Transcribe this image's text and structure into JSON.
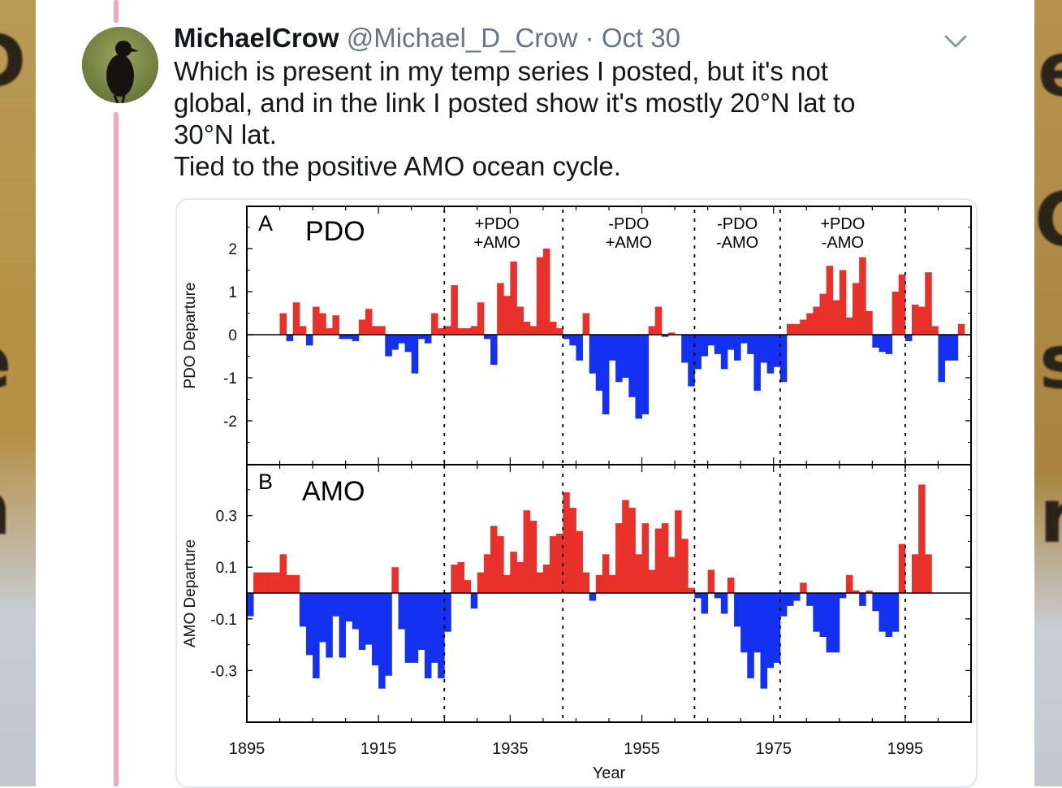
{
  "tweet": {
    "author_name": "MichaelCrow",
    "author_handle": "@Michael_D_Crow",
    "separator": "·",
    "date": "Oct 30",
    "lines": [
      "Which is present in my temp series I posted, but it's not",
      "global, and in the link I posted show it's mostly 20°N lat to",
      "30°N lat.",
      "Tied to the positive AMO ocean cycle."
    ],
    "icons": {
      "menu": "chevron-down-icon",
      "avatar": "crow-avatar"
    }
  },
  "chart_data": [
    {
      "type": "bar",
      "panel_letter": "A",
      "title": "PDO",
      "ylabel": "PDO Departure",
      "xlabel": "Year",
      "xlim": [
        1895,
        2005
      ],
      "ylim": [
        -3,
        3
      ],
      "x_ticks": [
        "1895",
        "1915",
        "1935",
        "1955",
        "1975",
        "1995"
      ],
      "y_ticks": [
        "2",
        "1",
        "0",
        "-1",
        "-2"
      ],
      "regime_lines": [
        1925,
        1943,
        1963,
        1976,
        1995
      ],
      "regime_labels": [
        {
          "line1": "+PDO",
          "line2": "+AMO",
          "x": 1933
        },
        {
          "line1": "-PDO",
          "line2": "+AMO",
          "x": 1953
        },
        {
          "line1": "-PDO",
          "line2": "-AMO",
          "x": 1969.5
        },
        {
          "line1": "+PDO",
          "line2": "-AMO",
          "x": 1985.5
        }
      ],
      "colors": {
        "positive": "#e8312a",
        "negative": "#1430f0"
      },
      "start_year": 1900,
      "values": [
        0.5,
        -0.15,
        0.75,
        0.2,
        -0.25,
        0.65,
        0.5,
        0.15,
        0.45,
        -0.1,
        -0.1,
        -0.15,
        0.35,
        0.6,
        0.2,
        0.2,
        -0.5,
        -0.35,
        -0.2,
        -0.4,
        -0.9,
        -0.1,
        -0.2,
        0.5,
        0.15,
        0.2,
        1.15,
        0.15,
        0.15,
        0.2,
        0.75,
        -0.1,
        -0.7,
        1.2,
        0.9,
        1.7,
        0.65,
        0.3,
        0.2,
        1.8,
        2.0,
        0.3,
        0.15,
        -0.1,
        -0.25,
        -0.6,
        0.5,
        -0.9,
        -1.3,
        -1.85,
        -0.6,
        -1.1,
        -1.0,
        -1.45,
        -1.95,
        -1.85,
        0.2,
        0.65,
        -0.05,
        0.05,
        0.0,
        -0.65,
        -1.2,
        -0.8,
        -0.5,
        -0.25,
        -0.45,
        -0.8,
        -0.35,
        -0.6,
        -0.2,
        -0.45,
        -1.3,
        -0.65,
        -0.9,
        -0.75,
        -1.1,
        0.25,
        0.25,
        0.35,
        0.5,
        0.65,
        0.95,
        1.6,
        0.8,
        1.5,
        0.4,
        1.2,
        1.8,
        0.55,
        -0.3,
        -0.4,
        -0.45,
        1.0,
        1.4,
        -0.15,
        0.7,
        0.65,
        1.45,
        0.2,
        -1.1,
        -0.6,
        -0.6,
        0.25
      ]
    },
    {
      "type": "bar",
      "panel_letter": "B",
      "title": "AMO",
      "ylabel": "AMO Departure",
      "xlabel": "Year",
      "xlim": [
        1895,
        2005
      ],
      "ylim": [
        -0.5,
        0.5
      ],
      "x_ticks": [
        "1895",
        "1915",
        "1935",
        "1955",
        "1975",
        "1995"
      ],
      "y_ticks": [
        "0.3",
        "0.1",
        "-0.1",
        "-0.3"
      ],
      "regime_lines": [
        1925,
        1943,
        1963,
        1976,
        1995
      ],
      "colors": {
        "positive": "#e8312a",
        "negative": "#1430f0"
      },
      "start_year": 1895,
      "values": [
        -0.09,
        0.08,
        0.08,
        0.08,
        0.08,
        0.15,
        0.07,
        0.07,
        -0.13,
        -0.24,
        -0.33,
        -0.19,
        -0.25,
        -0.09,
        -0.25,
        -0.11,
        -0.14,
        -0.22,
        -0.2,
        -0.28,
        -0.37,
        -0.32,
        0.1,
        -0.14,
        -0.27,
        -0.27,
        -0.22,
        -0.33,
        -0.27,
        -0.33,
        -0.15,
        0.11,
        0.12,
        0.05,
        -0.06,
        0.08,
        0.15,
        0.26,
        0.22,
        0.07,
        0.16,
        0.12,
        0.32,
        0.28,
        0.08,
        0.11,
        0.22,
        0.23,
        0.39,
        0.33,
        0.24,
        0.08,
        -0.03,
        0.07,
        0.15,
        0.07,
        0.27,
        0.36,
        0.33,
        0.15,
        0.27,
        0.09,
        0.25,
        0.27,
        0.14,
        0.32,
        0.21,
        0.02,
        -0.02,
        -0.08,
        0.09,
        -0.02,
        -0.08,
        0.06,
        -0.13,
        -0.23,
        -0.33,
        -0.23,
        -0.37,
        -0.29,
        -0.27,
        -0.09,
        -0.05,
        -0.03,
        0.04,
        -0.05,
        -0.15,
        -0.17,
        -0.23,
        -0.23,
        -0.02,
        0.07,
        0.01,
        -0.05,
        0.01,
        -0.07,
        -0.15,
        -0.17,
        -0.15,
        0.19,
        0.0,
        0.15,
        0.42,
        0.15
      ]
    }
  ]
}
